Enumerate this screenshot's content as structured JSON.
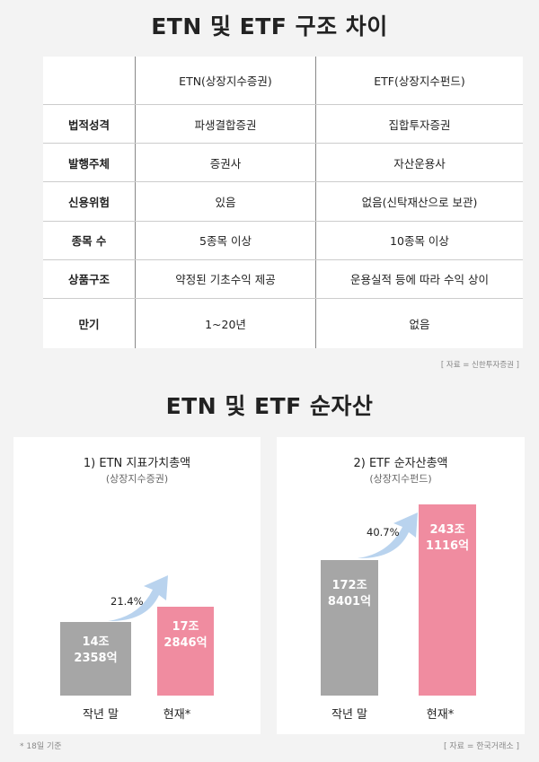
{
  "title1": "ETN 및 ETF 구조 차이",
  "table": {
    "headers": [
      "",
      "ETN(상장지수증권)",
      "ETF(상장지수펀드)"
    ],
    "rows": [
      [
        "법적성격",
        "파생결합증권",
        "집합투자증권"
      ],
      [
        "발행주체",
        "증권사",
        "자산운용사"
      ],
      [
        "신용위험",
        "있음",
        "없음(신탁재산으로 보관)"
      ],
      [
        "종목 수",
        "5종목 이상",
        "10종목 이상"
      ],
      [
        "상품구조",
        "약정된 기초수익 제공",
        "운용실적 등에 따라 수익 상이"
      ],
      [
        "만기",
        "1~20년",
        "없음"
      ]
    ],
    "source": "[ 자료 = 신한투자증권 ]"
  },
  "title2": "ETN 및 ETF 순자산",
  "chart_data": [
    {
      "type": "bar",
      "title": "1) ETN 지표가치총액",
      "subtitle": "(상장지수증권)",
      "categories": [
        "작년 말",
        "현재*"
      ],
      "values": [
        14.2358,
        17.2846
      ],
      "data_labels": [
        [
          "14조",
          "2358억"
        ],
        [
          "17조",
          "2846억"
        ]
      ],
      "growth_label": "21.4%",
      "colors": [
        "#a6a6a6",
        "#f08ca0"
      ]
    },
    {
      "type": "bar",
      "title": "2) ETF 순자산총액",
      "subtitle": "(상장지수펀드)",
      "categories": [
        "작년 말",
        "현재*"
      ],
      "values": [
        172.8401,
        243.1116
      ],
      "data_labels": [
        [
          "172조",
          "8401억"
        ],
        [
          "243조",
          "1116억"
        ]
      ],
      "growth_label": "40.7%",
      "colors": [
        "#a6a6a6",
        "#f08ca0"
      ]
    }
  ],
  "footnote": "* 18일 기준",
  "source2": "[ 자료 = 한국거래소 ]",
  "arrow_color": "#b9d3ee"
}
